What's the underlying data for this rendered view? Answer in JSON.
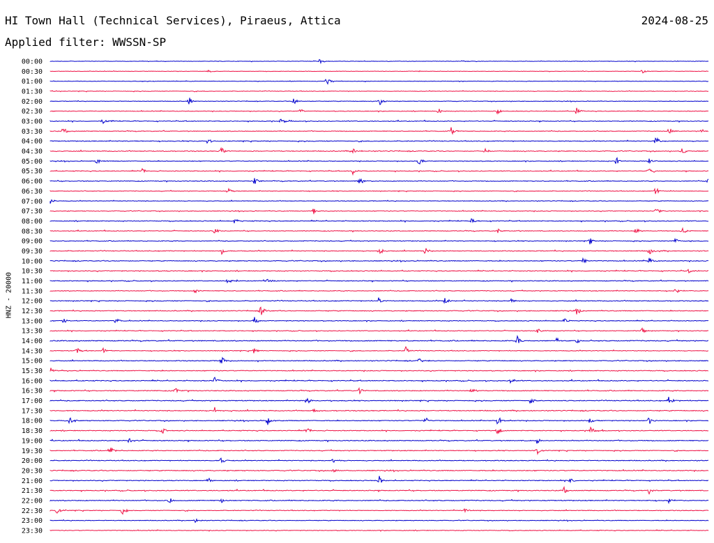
{
  "header": {
    "station": "HI Town Hall (Technical Services), Piraeus, Attica",
    "date": "2024-08-25",
    "filter": "Applied filter: WWSSN-SP",
    "channel": "HNZ - 20000"
  },
  "chart_data": {
    "type": "line",
    "title": "HI Town Hall (Technical Services), Piraeus, Attica",
    "ylabel": "HNZ - 20000",
    "trace_colors": [
      "#0000cc",
      "#ee1144"
    ],
    "times": [
      "00:00",
      "00:30",
      "01:00",
      "01:30",
      "02:00",
      "02:30",
      "03:00",
      "03:30",
      "04:00",
      "04:30",
      "05:00",
      "05:30",
      "06:00",
      "06:30",
      "07:00",
      "07:30",
      "08:00",
      "08:30",
      "09:00",
      "09:30",
      "10:00",
      "10:30",
      "11:00",
      "11:30",
      "12:00",
      "12:30",
      "13:00",
      "13:30",
      "14:00",
      "14:30",
      "15:00",
      "15:30",
      "16:00",
      "16:30",
      "17:00",
      "17:30",
      "18:00",
      "18:30",
      "19:00",
      "19:30",
      "20:00",
      "20:30",
      "21:00",
      "21:30",
      "22:00",
      "22:30",
      "23:00",
      "23:30"
    ],
    "trace_noise": [
      0.6,
      0.5,
      0.6,
      0.7,
      0.7,
      0.8,
      0.9,
      0.9,
      1.0,
      1.0,
      0.9,
      0.9,
      0.9,
      0.8,
      0.8,
      0.8,
      1.0,
      0.9,
      0.9,
      1.0,
      1.0,
      1.0,
      1.0,
      0.9,
      1.0,
      1.0,
      0.9,
      0.9,
      1.2,
      0.9,
      1.0,
      1.0,
      1.1,
      1.1,
      1.1,
      1.1,
      1.0,
      1.0,
      1.1,
      1.0,
      1.0,
      1.1,
      1.0,
      1.1,
      1.1,
      0.9,
      0.8,
      0.8
    ],
    "events": [
      [
        [
          0.41,
          0.55
        ]
      ],
      [
        [
          0.24,
          0.3
        ],
        [
          0.9,
          0.35
        ]
      ],
      [
        [
          0.42,
          0.65
        ]
      ],
      [],
      [
        [
          0.21,
          0.8
        ],
        [
          0.37,
          0.6
        ],
        [
          0.5,
          0.8
        ]
      ],
      [
        [
          0.38,
          0.5
        ],
        [
          0.59,
          0.55
        ],
        [
          0.68,
          0.6
        ],
        [
          0.8,
          0.75
        ]
      ],
      [
        [
          0.08,
          0.5
        ],
        [
          0.35,
          0.4
        ]
      ],
      [
        [
          0.02,
          0.8
        ],
        [
          0.61,
          1.0
        ],
        [
          0.94,
          0.9
        ],
        [
          0.99,
          0.6
        ]
      ],
      [
        [
          0.24,
          0.8
        ],
        [
          0.92,
          0.9
        ]
      ],
      [
        [
          0.26,
          0.6
        ],
        [
          0.46,
          0.6
        ],
        [
          0.66,
          0.6
        ],
        [
          0.96,
          0.7
        ]
      ],
      [
        [
          0.07,
          0.6
        ],
        [
          0.56,
          0.7
        ],
        [
          0.86,
          0.7
        ],
        [
          0.91,
          0.6
        ]
      ],
      [
        [
          0.14,
          0.5
        ],
        [
          0.46,
          0.6
        ],
        [
          0.91,
          0.5
        ]
      ],
      [
        [
          0.31,
          0.9
        ],
        [
          0.47,
          0.7
        ],
        [
          1.0,
          0.6
        ]
      ],
      [
        [
          0.27,
          0.6
        ],
        [
          0.92,
          0.7
        ]
      ],
      [
        [
          0.0,
          0.5
        ]
      ],
      [
        [
          0.4,
          0.6
        ],
        [
          0.92,
          0.7
        ]
      ],
      [
        [
          0.28,
          0.5
        ],
        [
          0.64,
          0.4
        ]
      ],
      [
        [
          0.25,
          0.5
        ],
        [
          0.68,
          0.5
        ],
        [
          0.89,
          0.7
        ],
        [
          0.96,
          0.8
        ]
      ],
      [
        [
          0.82,
          0.6
        ],
        [
          0.95,
          0.6
        ]
      ],
      [
        [
          0.26,
          0.7
        ],
        [
          0.5,
          0.8
        ],
        [
          0.57,
          0.6
        ],
        [
          0.91,
          0.7
        ]
      ],
      [
        [
          0.81,
          0.6
        ],
        [
          0.91,
          0.8
        ]
      ],
      [
        [
          0.97,
          0.4
        ]
      ],
      [
        [
          0.27,
          0.6
        ],
        [
          0.33,
          0.5
        ]
      ],
      [
        [
          0.22,
          0.4
        ],
        [
          0.95,
          0.6
        ]
      ],
      [
        [
          0.5,
          0.8
        ],
        [
          0.6,
          0.6
        ],
        [
          0.7,
          0.5
        ]
      ],
      [
        [
          0.32,
          0.8
        ],
        [
          0.8,
          0.7
        ]
      ],
      [
        [
          0.02,
          0.5
        ],
        [
          0.1,
          0.6
        ],
        [
          0.31,
          0.8
        ],
        [
          0.78,
          0.5
        ]
      ],
      [
        [
          0.74,
          0.5
        ],
        [
          0.9,
          0.6
        ]
      ],
      [
        [
          0.71,
          0.9
        ],
        [
          0.77,
          0.6
        ],
        [
          0.8,
          0.5
        ]
      ],
      [
        [
          0.04,
          0.6
        ],
        [
          0.08,
          0.5
        ],
        [
          0.31,
          0.6
        ],
        [
          0.54,
          0.8
        ]
      ],
      [
        [
          0.26,
          0.8
        ],
        [
          0.56,
          0.5
        ]
      ],
      [
        [
          0.0,
          0.7
        ]
      ],
      [
        [
          0.25,
          0.7
        ],
        [
          0.7,
          0.6
        ]
      ],
      [
        [
          0.19,
          0.5
        ],
        [
          0.47,
          0.6
        ],
        [
          0.64,
          0.5
        ]
      ],
      [
        [
          0.39,
          0.7
        ],
        [
          0.73,
          0.6
        ],
        [
          0.94,
          0.8
        ]
      ],
      [
        [
          0.25,
          0.6
        ],
        [
          0.4,
          0.6
        ]
      ],
      [
        [
          0.03,
          0.7
        ],
        [
          0.33,
          0.8
        ],
        [
          0.57,
          0.6
        ],
        [
          0.68,
          0.8
        ],
        [
          0.82,
          0.8
        ],
        [
          0.91,
          0.7
        ]
      ],
      [
        [
          0.17,
          0.6
        ],
        [
          0.39,
          0.6
        ],
        [
          0.68,
          0.8
        ],
        [
          0.82,
          0.8
        ]
      ],
      [
        [
          0.12,
          0.5
        ],
        [
          0.74,
          0.6
        ]
      ],
      [
        [
          0.09,
          0.9
        ],
        [
          0.74,
          0.6
        ]
      ],
      [
        [
          0.26,
          0.7
        ],
        [
          0.43,
          0.6
        ]
      ],
      [
        [
          0.43,
          0.5
        ]
      ],
      [
        [
          0.24,
          0.6
        ],
        [
          0.5,
          0.8
        ],
        [
          0.79,
          0.6
        ]
      ],
      [
        [
          0.78,
          0.8
        ],
        [
          0.91,
          0.6
        ]
      ],
      [
        [
          0.18,
          0.7
        ],
        [
          0.26,
          0.5
        ],
        [
          0.94,
          0.5
        ]
      ],
      [
        [
          0.01,
          0.6
        ],
        [
          0.11,
          0.8
        ],
        [
          0.63,
          0.5
        ]
      ],
      [
        [
          0.22,
          0.4
        ]
      ],
      []
    ]
  }
}
